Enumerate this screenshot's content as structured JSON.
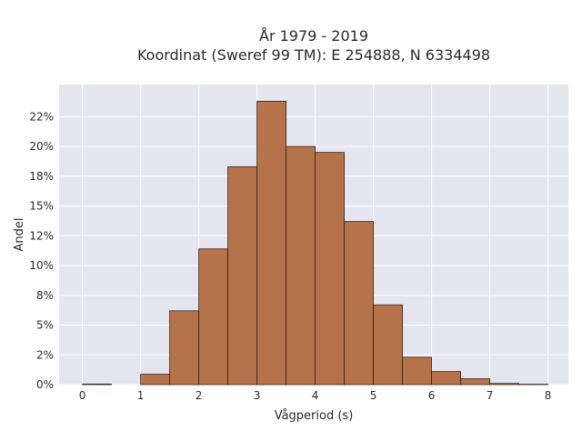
{
  "chart_data": {
    "type": "bar",
    "title_line1": "År 1979 - 2019",
    "title_line2": "Koordinat (Sweref 99 TM): E 254888, N 6334498",
    "xlabel": "Vågperiod (s)",
    "ylabel": "Andel",
    "bin_width": 0.5,
    "bins": [
      {
        "x0": 0.0,
        "x1": 0.5,
        "value": 0.05
      },
      {
        "x0": 0.5,
        "x1": 1.0,
        "value": 0.0
      },
      {
        "x0": 1.0,
        "x1": 1.5,
        "value": 0.87
      },
      {
        "x0": 1.5,
        "x1": 2.0,
        "value": 6.2
      },
      {
        "x0": 2.0,
        "x1": 2.5,
        "value": 11.4
      },
      {
        "x0": 2.5,
        "x1": 3.0,
        "value": 18.3
      },
      {
        "x0": 3.0,
        "x1": 3.5,
        "value": 23.8
      },
      {
        "x0": 3.5,
        "x1": 4.0,
        "value": 20.0
      },
      {
        "x0": 4.0,
        "x1": 4.5,
        "value": 19.5
      },
      {
        "x0": 4.5,
        "x1": 5.0,
        "value": 13.7
      },
      {
        "x0": 5.0,
        "x1": 5.5,
        "value": 6.7
      },
      {
        "x0": 5.5,
        "x1": 6.0,
        "value": 2.3
      },
      {
        "x0": 6.0,
        "x1": 6.5,
        "value": 1.1
      },
      {
        "x0": 6.5,
        "x1": 7.0,
        "value": 0.5
      },
      {
        "x0": 7.0,
        "x1": 7.5,
        "value": 0.1
      },
      {
        "x0": 7.5,
        "x1": 8.0,
        "value": 0.03
      }
    ],
    "xlim": [
      -0.4,
      8.35
    ],
    "ylim": [
      0,
      25.2
    ],
    "xticks": [
      0,
      1,
      2,
      3,
      4,
      5,
      6,
      7,
      8
    ],
    "xtick_labels": [
      "0",
      "1",
      "2",
      "3",
      "4",
      "5",
      "6",
      "7",
      "8"
    ],
    "yticks": [
      0,
      2.5,
      5,
      7.5,
      10,
      12.5,
      15,
      17.5,
      20,
      22.5
    ],
    "ytick_labels": [
      "0%",
      "2%",
      "5%",
      "8%",
      "10%",
      "12%",
      "15%",
      "18%",
      "20%",
      "22%"
    ],
    "grid": true,
    "colors": {
      "bar_fill": "#b5734b",
      "bar_stroke": "#3a2418",
      "plot_background": "#e5e5ef",
      "grid": "#ffffff"
    }
  }
}
